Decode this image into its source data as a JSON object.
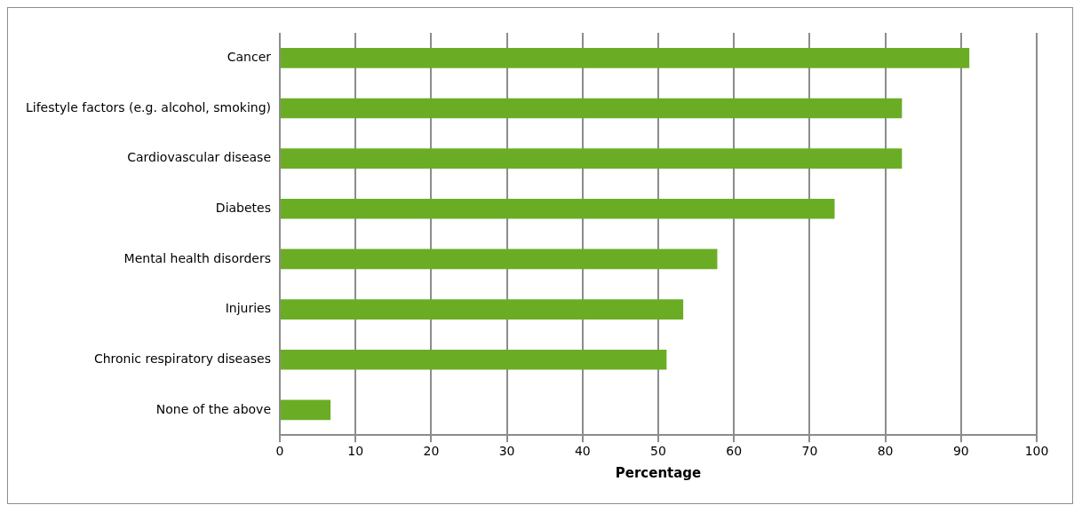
{
  "chart_data": {
    "type": "bar",
    "orientation": "horizontal",
    "xlabel": "Percentage",
    "categories": [
      "Cancer",
      "Lifestyle factors (e.g. alcohol, smoking)",
      "Cardiovascular disease",
      "Diabetes",
      "Mental health disorders",
      "Injuries",
      "Chronic respiratory diseases",
      "None of the above"
    ],
    "values": [
      91.1,
      82.2,
      82.2,
      73.3,
      57.8,
      53.3,
      51.1,
      6.7
    ],
    "color": "#6aad24",
    "xlim": [
      0,
      100
    ],
    "xticks": [
      0,
      10,
      20,
      30,
      40,
      50,
      60,
      70,
      80,
      90,
      100
    ],
    "grid": "x",
    "legend": false
  }
}
